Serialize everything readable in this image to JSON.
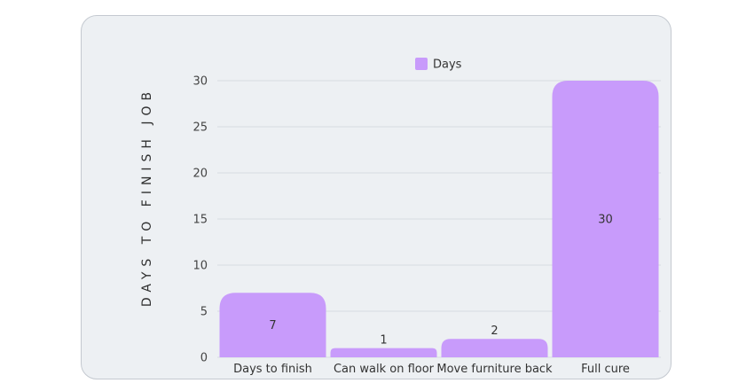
{
  "chart_data": {
    "type": "bar",
    "categories": [
      "Days to finish",
      "Can walk on floor",
      "Move furniture back",
      "Full cure"
    ],
    "series": [
      {
        "name": "Days",
        "values": [
          7,
          1,
          2,
          30
        ]
      }
    ],
    "ylabel": "DAYS TO FINISH JOB",
    "xlabel": "",
    "ylim": [
      0,
      30
    ],
    "yticks": [
      0,
      5,
      10,
      15,
      20,
      25,
      30
    ],
    "legend_position": "top-center",
    "grid": true,
    "colors": {
      "bar": "#c89bfb",
      "card": "#edf0f3",
      "grid": "#d6dbe1"
    }
  }
}
